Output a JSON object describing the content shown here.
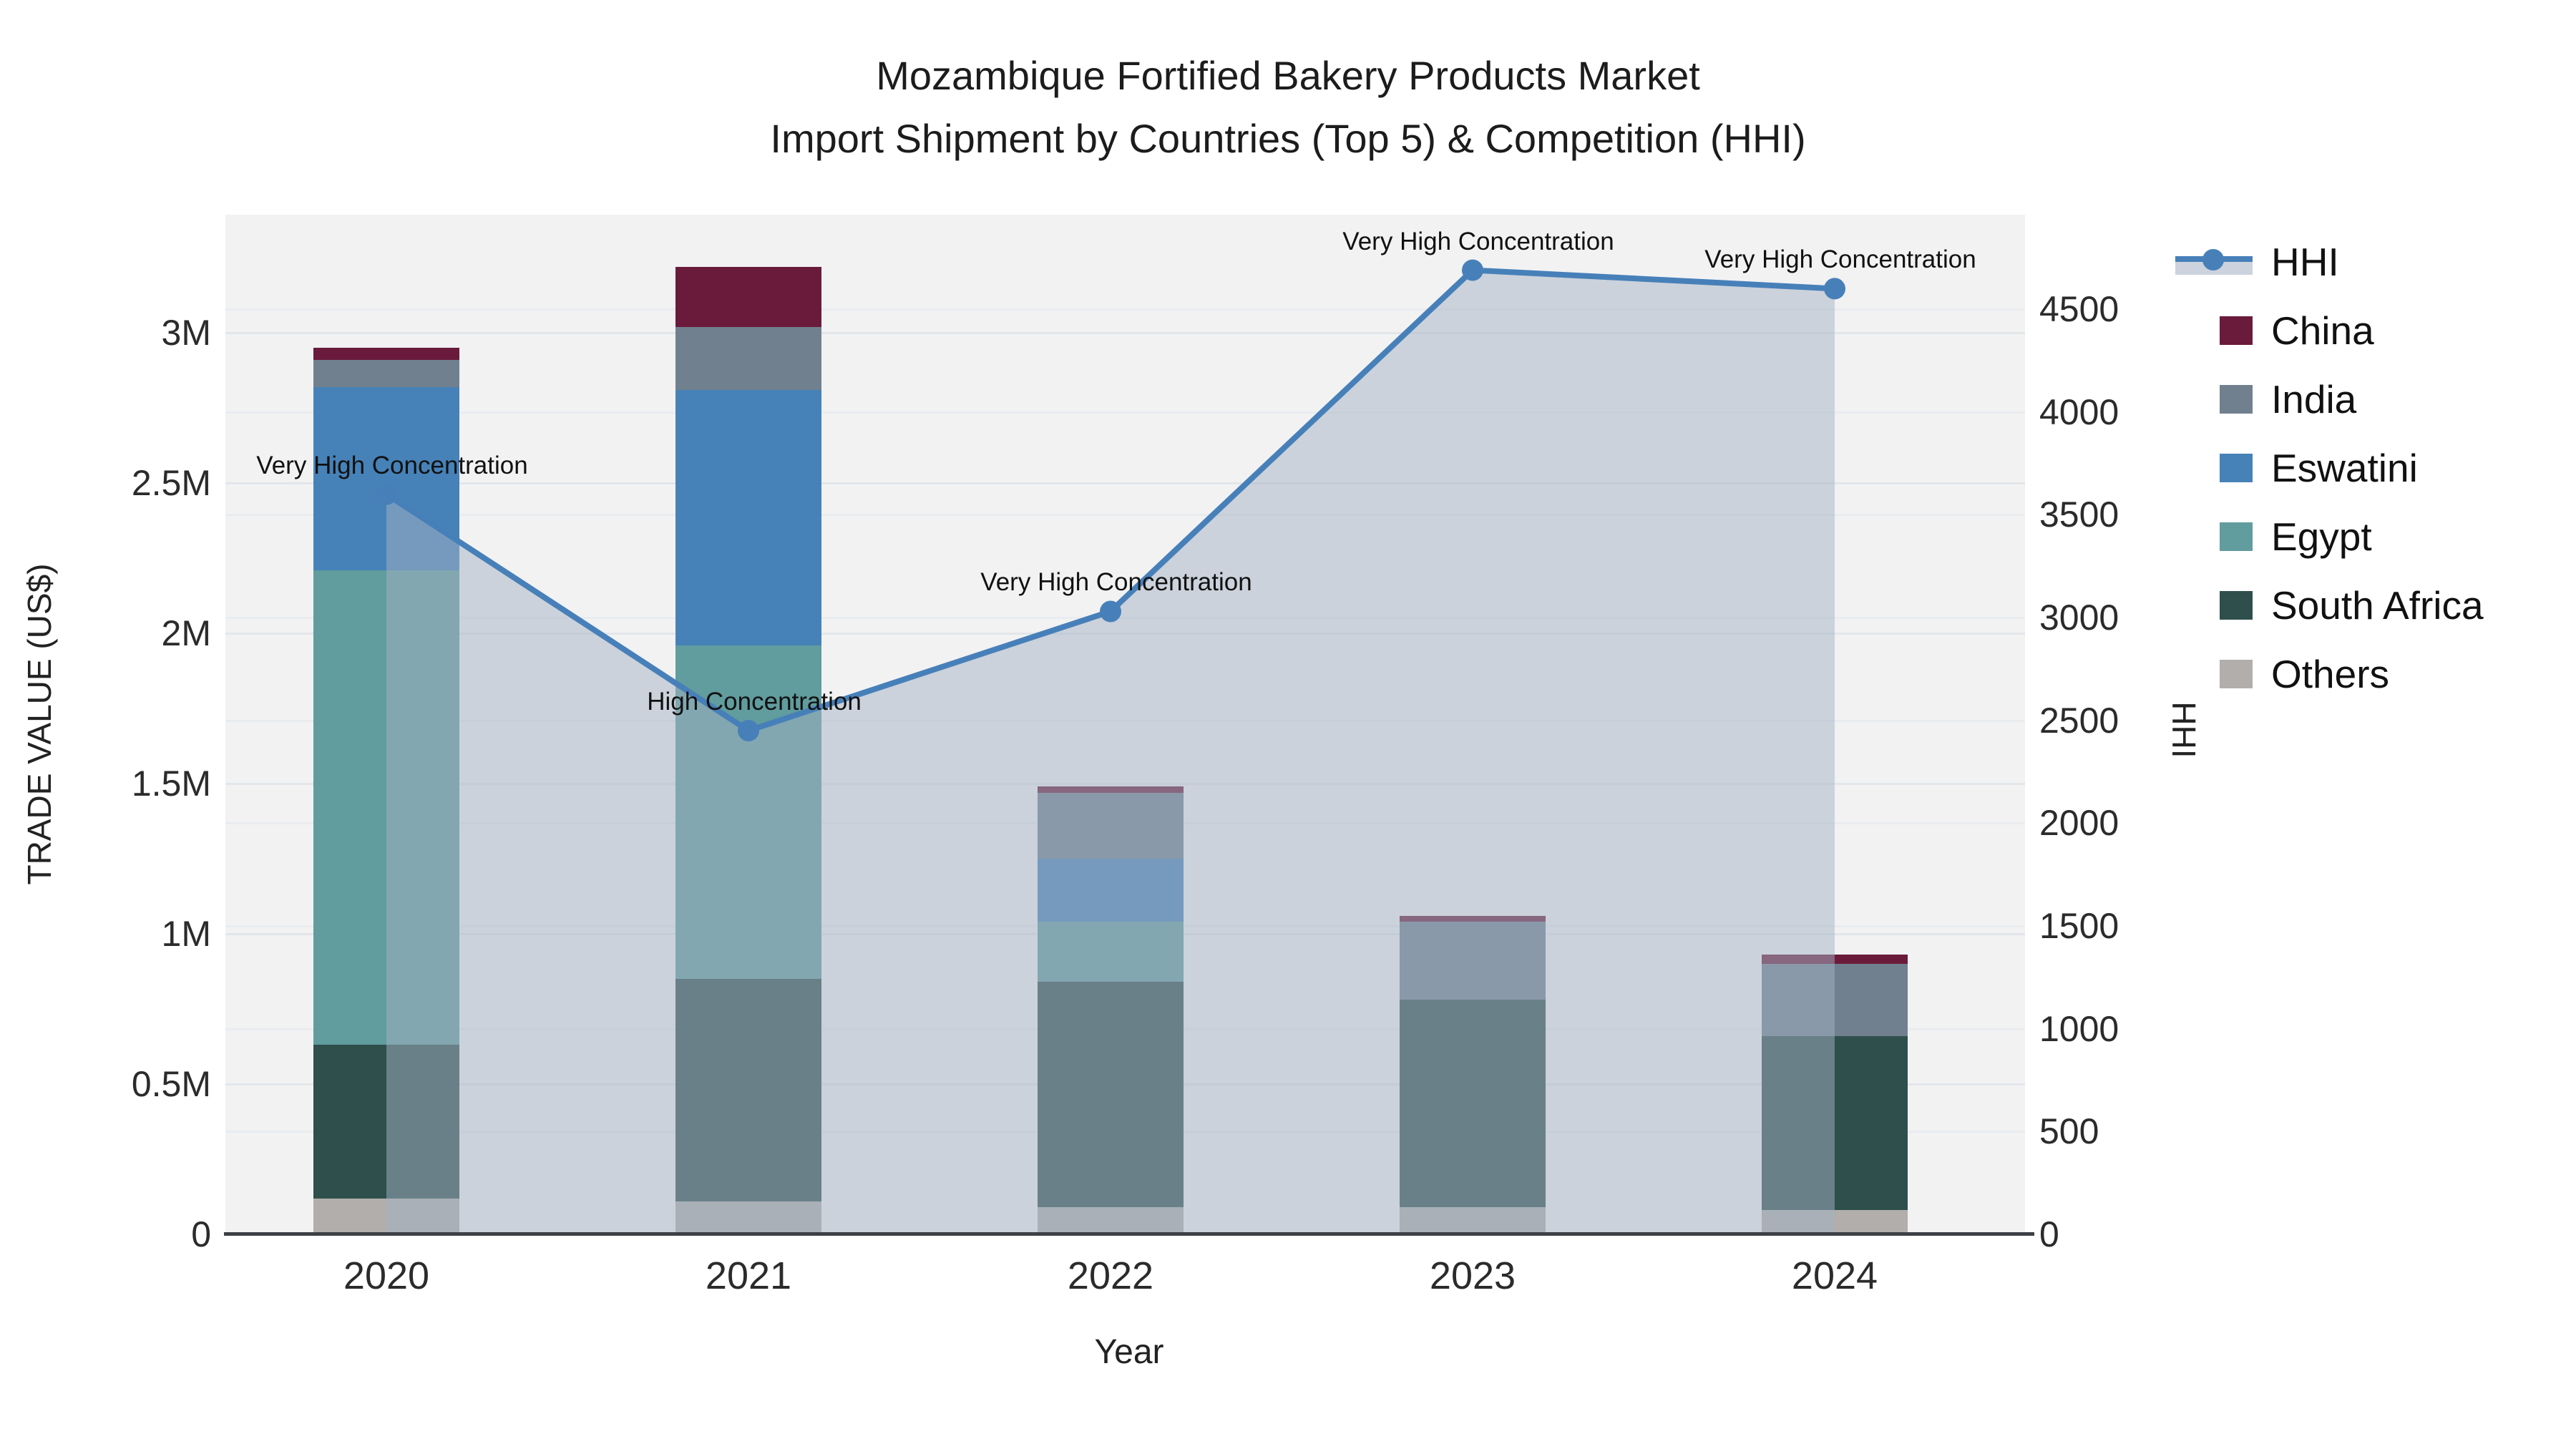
{
  "title": {
    "line1": "Mozambique Fortified Bakery Products Market",
    "line2": "Import Shipment by Countries (Top 5) & Competition (HHI)"
  },
  "axes": {
    "x_title": "Year",
    "y_left_title": "TRADE VALUE (US$)",
    "y_right_title": "HHI",
    "x_ticks": [
      "2020",
      "2021",
      "2022",
      "2023",
      "2024"
    ],
    "y_left_ticks": [
      "0",
      "0.5M",
      "1M",
      "1.5M",
      "2M",
      "2.5M",
      "3M"
    ],
    "y_right_ticks": [
      "0",
      "500",
      "1000",
      "1500",
      "2000",
      "2500",
      "3000",
      "3500",
      "4000",
      "4500"
    ]
  },
  "legend": {
    "items": [
      "HHI",
      "China",
      "India",
      "Eswatini",
      "Egypt",
      "South Africa",
      "Others"
    ]
  },
  "chart_data": {
    "type": "combo_stacked_bar_line",
    "title": "Mozambique Fortified Bakery Products Market — Import Shipment by Countries (Top 5) & Competition (HHI)",
    "x": [
      2020,
      2021,
      2022,
      2023,
      2024
    ],
    "bar_unit": "US$ (millions)",
    "stack_order_bottom_to_top": [
      "Others",
      "South Africa",
      "Egypt",
      "Eswatini",
      "India",
      "China"
    ],
    "series": [
      {
        "name": "China",
        "color": "#6a1b3b",
        "values": [
          0.04,
          0.2,
          0.02,
          0.02,
          0.03
        ]
      },
      {
        "name": "India",
        "color": "#71808f",
        "values": [
          0.09,
          0.21,
          0.22,
          0.26,
          0.24
        ]
      },
      {
        "name": "Eswatini",
        "color": "#4682b8",
        "values": [
          0.61,
          0.85,
          0.21,
          0.0,
          0.0
        ]
      },
      {
        "name": "Egypt",
        "color": "#619c9e",
        "values": [
          1.58,
          1.11,
          0.2,
          0.0,
          0.0
        ]
      },
      {
        "name": "South Africa",
        "color": "#2e4f4c",
        "values": [
          0.51,
          0.74,
          0.75,
          0.69,
          0.58
        ]
      },
      {
        "name": "Others",
        "color": "#b1aeab",
        "values": [
          0.12,
          0.11,
          0.09,
          0.09,
          0.08
        ]
      }
    ],
    "bar_totals_musd": [
      2.95,
      3.22,
      1.49,
      1.06,
      0.93
    ],
    "line_series": {
      "name": "HHI",
      "color": "#4780b9",
      "area_fill": "rgba(163,177,196,0.5)",
      "values": [
        3600,
        2450,
        3030,
        4690,
        4600
      ]
    },
    "annotations": [
      {
        "x": 2020,
        "text": "Very High Concentration"
      },
      {
        "x": 2021,
        "text": "High Concentration"
      },
      {
        "x": 2022,
        "text": "Very High Concentration"
      },
      {
        "x": 2023,
        "text": "Very High Concentration"
      },
      {
        "x": 2024,
        "text": "Very High Concentration"
      }
    ],
    "y_left_range_musd": [
      0,
      3.39
    ],
    "y_right_range": [
      0,
      4960
    ],
    "grid": true,
    "legend_position": "right",
    "plot_background": "#f2f2f3"
  }
}
